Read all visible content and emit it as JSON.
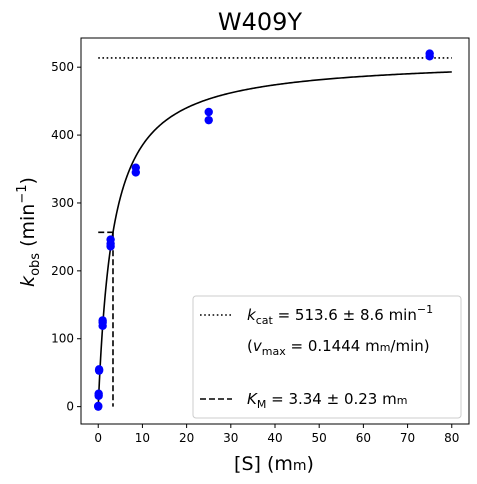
{
  "chart_data": {
    "type": "scatter",
    "title": "W409Y",
    "xlabel": {
      "main": "[S] (m",
      "unit_sc": "m",
      "close": ")"
    },
    "ylabel": {
      "k": "k",
      "sub": "obs",
      "unit": " (min",
      "sup": "−1",
      "close": ")"
    },
    "xlim": [
      -3.9,
      83.9
    ],
    "ylim": [
      -25.6,
      543.0
    ],
    "xticks": [
      0,
      10,
      20,
      30,
      40,
      50,
      60,
      70,
      80
    ],
    "yticks": [
      0,
      100,
      200,
      300,
      400,
      500
    ],
    "xtick_labels": [
      "0",
      "10",
      "20",
      "30",
      "40",
      "50",
      "60",
      "70",
      "80"
    ],
    "ytick_labels": [
      "0",
      "100",
      "200",
      "300",
      "400",
      "500"
    ],
    "grid": false,
    "legend_position": "lower-right",
    "points": {
      "color": "#0000ff",
      "x": [
        0.0,
        0.0,
        0.1,
        0.1,
        0.2,
        0.2,
        1.0,
        1.0,
        1.0,
        2.8,
        2.8,
        2.8,
        8.5,
        8.5,
        25.0,
        25.0,
        75.0,
        75.0
      ],
      "y": [
        0,
        1,
        16,
        19,
        53,
        55,
        119,
        124,
        127,
        236,
        240,
        246,
        345,
        352,
        422,
        434,
        516,
        520
      ]
    },
    "fit": {
      "color": "#000000",
      "model": "kcat*[S]/(KM+[S])",
      "kcat": 513.6,
      "KM": 3.34,
      "x_range": [
        0,
        80
      ]
    },
    "kcat_line": {
      "y": 513.6,
      "x_range": [
        0,
        80
      ],
      "style": "dotted"
    },
    "km_line": {
      "x": 3.34,
      "y_half": 256.8,
      "style": "dashed"
    },
    "legend": {
      "kcat": {
        "k": "k",
        "sub": "cat",
        "text": " = 513.6 ± 8.6 min",
        "sup": "−1"
      },
      "vmax": {
        "open": "(",
        "v": "v",
        "sub": "max",
        "text": " = 0.1444 m",
        "sc": "m",
        "tail": "/min)"
      },
      "km": {
        "K": "K",
        "sub": "M",
        "text": " = 3.34 ± 0.23 m",
        "sc": "m"
      }
    }
  }
}
